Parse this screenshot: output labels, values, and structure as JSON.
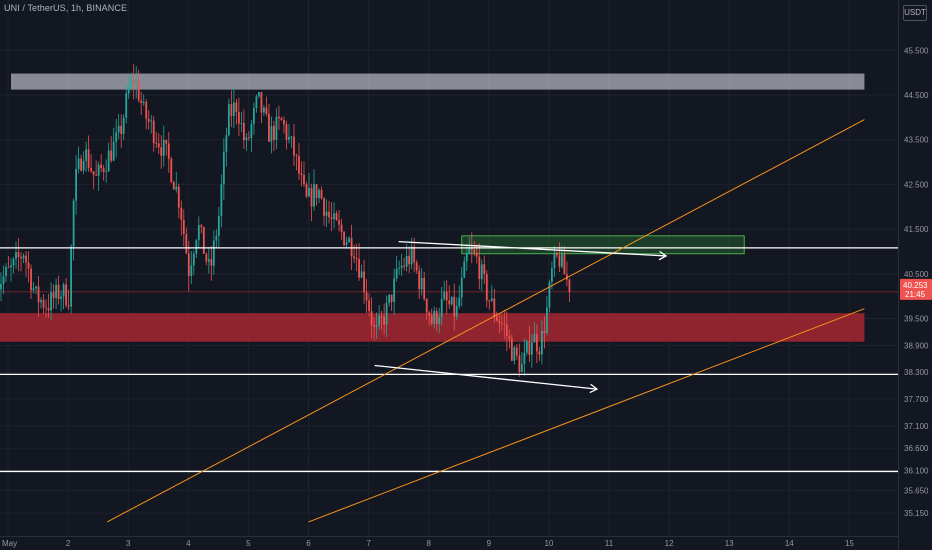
{
  "header": {
    "title": "UNI / TetherUS, 1h, BINANCE",
    "currency": "USDT"
  },
  "colors": {
    "background": "#131722",
    "up": "#26a69a",
    "down": "#ef5350",
    "resistance_zone": "#d1d4dc",
    "green_zone": "#2e7d32",
    "red_zone": "#b22833",
    "trendline": "#f7931a",
    "level_line": "#ffffff"
  },
  "chart_data": {
    "type": "candlestick",
    "symbol": "UNI / TetherUS",
    "interval": "1h",
    "exchange": "BINANCE",
    "ylim": [
      34.95,
      46.2
    ],
    "xlim": [
      0.78,
      15.25
    ],
    "y_ticks": [
      "35.150",
      "35.650",
      "36.100",
      "36.600",
      "37.100",
      "37.700",
      "38.300",
      "38.900",
      "39.500",
      "40.500",
      "41.500",
      "42.500",
      "43.500",
      "44.500",
      "45.500"
    ],
    "x_ticks": [
      {
        "value": 1,
        "label": "May"
      },
      {
        "value": 2,
        "label": "2"
      },
      {
        "value": 3,
        "label": "3"
      },
      {
        "value": 4,
        "label": "4"
      },
      {
        "value": 5,
        "label": "5"
      },
      {
        "value": 6,
        "label": "6"
      },
      {
        "value": 7,
        "label": "7"
      },
      {
        "value": 8,
        "label": "8"
      },
      {
        "value": 9,
        "label": "9"
      },
      {
        "value": 10,
        "label": "10"
      },
      {
        "value": 11,
        "label": "11"
      },
      {
        "value": 12,
        "label": "12"
      },
      {
        "value": 13,
        "label": "13"
      },
      {
        "value": 14,
        "label": "14"
      },
      {
        "value": 15,
        "label": "15"
      }
    ],
    "last_price": {
      "value": 40.253,
      "label": "40.253",
      "countdown": "21:45"
    },
    "price_path": [
      [
        0.8,
        40.2
      ],
      [
        1.1,
        40.6
      ],
      [
        1.3,
        41.0
      ],
      [
        1.5,
        40.0
      ],
      [
        1.7,
        39.8
      ],
      [
        1.9,
        40.1
      ],
      [
        2.05,
        40.0
      ],
      [
        2.15,
        42.5
      ],
      [
        2.3,
        43.3
      ],
      [
        2.5,
        42.6
      ],
      [
        2.7,
        43.1
      ],
      [
        2.9,
        43.6
      ],
      [
        3.05,
        44.6
      ],
      [
        3.15,
        44.9
      ],
      [
        3.3,
        44.1
      ],
      [
        3.5,
        43.6
      ],
      [
        3.7,
        43.1
      ],
      [
        3.9,
        42.1
      ],
      [
        4.05,
        40.6
      ],
      [
        4.2,
        41.6
      ],
      [
        4.4,
        40.5
      ],
      [
        4.55,
        41.8
      ],
      [
        4.7,
        44.0
      ],
      [
        4.85,
        44.3
      ],
      [
        5.0,
        43.3
      ],
      [
        5.2,
        44.4
      ],
      [
        5.4,
        43.6
      ],
      [
        5.6,
        43.9
      ],
      [
        5.8,
        43.2
      ],
      [
        6.0,
        42.1
      ],
      [
        6.2,
        42.4
      ],
      [
        6.4,
        41.7
      ],
      [
        6.6,
        41.4
      ],
      [
        6.8,
        41.1
      ],
      [
        7.0,
        40.1
      ],
      [
        7.15,
        39.1
      ],
      [
        7.35,
        39.7
      ],
      [
        7.55,
        40.6
      ],
      [
        7.75,
        40.9
      ],
      [
        7.95,
        40.1
      ],
      [
        8.1,
        39.4
      ],
      [
        8.3,
        39.9
      ],
      [
        8.5,
        39.6
      ],
      [
        8.7,
        41.0
      ],
      [
        8.85,
        40.8
      ],
      [
        9.0,
        40.1
      ],
      [
        9.15,
        39.6
      ],
      [
        9.3,
        39.3
      ],
      [
        9.45,
        38.7
      ],
      [
        9.6,
        38.4
      ],
      [
        9.75,
        39.1
      ],
      [
        9.9,
        38.9
      ],
      [
        10.0,
        39.6
      ],
      [
        10.1,
        40.6
      ],
      [
        10.2,
        40.9
      ],
      [
        10.3,
        40.5
      ],
      [
        10.37,
        40.25
      ]
    ],
    "horizontal_levels": [
      41.08,
      38.25,
      36.08
    ],
    "faint_levels": [
      40.1
    ],
    "zones": [
      {
        "name": "resistance-zone",
        "x": [
          1.05,
          15.25
        ],
        "y": [
          44.62,
          44.98
        ]
      },
      {
        "name": "green-zone",
        "x": [
          8.55,
          13.25
        ],
        "y": [
          40.95,
          41.35
        ]
      },
      {
        "name": "red-zone",
        "x": [
          0.78,
          15.25
        ],
        "y": [
          38.98,
          39.62
        ]
      }
    ],
    "trendlines": [
      {
        "name": "upper-trendline",
        "from": [
          2.65,
          34.95
        ],
        "to": [
          15.25,
          43.95
        ]
      },
      {
        "name": "lower-trendline",
        "from": [
          6.0,
          34.95
        ],
        "to": [
          15.25,
          39.72
        ]
      }
    ],
    "arrows": [
      {
        "name": "upper-arrow",
        "from": [
          7.5,
          41.22
        ],
        "to": [
          11.95,
          40.9
        ]
      },
      {
        "name": "lower-arrow",
        "from": [
          7.1,
          38.45
        ],
        "to": [
          10.8,
          37.92
        ]
      }
    ]
  }
}
